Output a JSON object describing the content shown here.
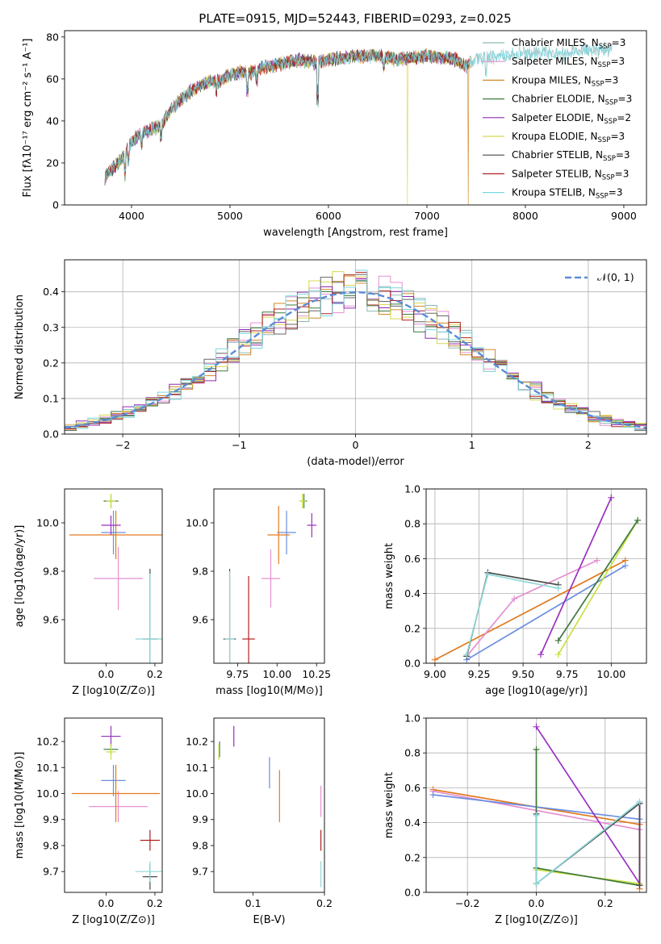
{
  "title": "PLATE=0915, MJD=52443, FIBERID=0293, z=0.025",
  "colors": [
    "#8fb8b8",
    "#e68fd0",
    "#d18a28",
    "#3e7a3e",
    "#8e2bb0",
    "#d8d850",
    "#4a4a4a",
    "#b02020",
    "#7ad6e0"
  ],
  "chart_data": [
    {
      "id": "spectrum",
      "type": "line",
      "xlabel": "wavelength [Angstrom, rest frame]",
      "ylabel": "Flux [fλ10⁻¹⁷ erg cm⁻² s⁻¹ A⁻¹]",
      "xlim": [
        3320,
        9230
      ],
      "ylim": [
        0,
        83
      ],
      "xticks": [
        4000,
        5000,
        6000,
        7000,
        8000,
        9000
      ],
      "yticks": [
        0,
        20,
        40,
        60,
        80
      ],
      "grid": false,
      "legend_position": "top-right",
      "legend": [
        "Chabrier MILES, N_SSP=3",
        "Salpeter MILES, N_SSP=3",
        "Kroupa MILES, N_SSP=3",
        "Chabrier ELODIE, N_SSP=3",
        "Salpeter ELODIE, N_SSP=2",
        "Kroupa ELODIE, N_SSP=3",
        "Chabrier STELIB, N_SSP=3",
        "Salpeter STELIB, N_SSP=3",
        "Kroupa STELIB, N_SSP=3"
      ],
      "continuum": {
        "x": [
          3730,
          3800,
          3900,
          4000,
          4100,
          4200,
          4300,
          4400,
          4500,
          4600,
          4700,
          4800,
          4900,
          5000,
          5100,
          5200,
          5300,
          5400,
          5500,
          5600,
          5700,
          5800,
          5900,
          6000,
          6100,
          6200,
          6300,
          6400,
          6500,
          6600,
          6700,
          6800,
          6900,
          7000,
          7100,
          7200,
          7300,
          7400,
          7500,
          7600,
          7700,
          7800,
          7900,
          8000,
          8100,
          8200,
          8300,
          8400,
          8500,
          8600,
          8700,
          8800,
          8900,
          9000,
          9100,
          9200
        ],
        "y": [
          13,
          17,
          22,
          30,
          34,
          36,
          38,
          45,
          50,
          54,
          57,
          59,
          59,
          62,
          63,
          63,
          65,
          66,
          67,
          68,
          69,
          68,
          68,
          69,
          70,
          70,
          71,
          71,
          71,
          70,
          69,
          70,
          70,
          71,
          70,
          70,
          69,
          66,
          70,
          69,
          71,
          71,
          72,
          72,
          72,
          73,
          72,
          72,
          73,
          74,
          73,
          74,
          74,
          75,
          76,
          76
        ]
      },
      "dropouts": [
        {
          "series": 5,
          "x": 6800,
          "y": 0
        },
        {
          "series": 2,
          "x": 7420,
          "y": 0
        }
      ]
    },
    {
      "id": "residuals",
      "type": "histogram",
      "xlabel": "(data-model)/error",
      "ylabel": "Normed distribution",
      "xlim": [
        -2.5,
        2.5
      ],
      "ylim": [
        0,
        0.49
      ],
      "xticks": [
        -2,
        -1,
        0,
        1,
        2
      ],
      "yticks": [
        0.0,
        0.1,
        0.2,
        0.3,
        0.4
      ],
      "grid": true,
      "reference_label": "𝒩(0, 1)",
      "reference_color": "#5b8bd8",
      "bin_width": 0.1
    },
    {
      "id": "age-vs-z",
      "type": "errorbar",
      "xlabel": "Z [log10(Z/Z⊙)]",
      "ylabel": "age  [log10(age/yr)]",
      "xlim": [
        -0.17,
        0.23
      ],
      "ylim": [
        9.42,
        10.14
      ],
      "xticks": [
        0.0,
        0.2
      ],
      "yticks": [
        9.6,
        9.8,
        10.0
      ],
      "grid": false,
      "points": [
        {
          "x": 0.03,
          "y": 9.96,
          "xerr": 0.05,
          "yerr": 0.09,
          "color": "#6b8ee0"
        },
        {
          "x": 0.05,
          "y": 9.77,
          "xerr": 0.1,
          "yerr": 0.13,
          "color": "#e68fd0"
        },
        {
          "x": 0.04,
          "y": 9.95,
          "xerr": 0.19,
          "yerr": 0.1,
          "color": "#e07a20"
        },
        {
          "x": 0.02,
          "y": 10.09,
          "xerr": 0.03,
          "yerr": 0.03,
          "color": "#3e7a3e"
        },
        {
          "x": 0.02,
          "y": 9.99,
          "xerr": 0.04,
          "yerr": 0.04,
          "color": "#9a30c0"
        },
        {
          "x": 0.02,
          "y": 10.09,
          "xerr": 0.02,
          "yerr": 0.03,
          "color": "#c8e040"
        },
        {
          "x": 0.18,
          "y": 9.52,
          "xerr": 0.03,
          "yerr": 0.29,
          "color": "#4a4a4a"
        },
        {
          "x": 0.18,
          "y": 9.52,
          "xerr": 0.06,
          "yerr": 0.27,
          "color": "#8fd8d8"
        }
      ]
    },
    {
      "id": "age-vs-mass",
      "type": "errorbar",
      "xlabel": "mass [log10(M/M⊙)]",
      "ylabel": "",
      "xlim": [
        9.6,
        10.3
      ],
      "ylim": [
        9.42,
        10.14
      ],
      "xticks": [
        9.75,
        10.0,
        10.25
      ],
      "yticks": [
        9.6,
        9.8,
        10.0
      ],
      "grid": false,
      "points": [
        {
          "x": 10.06,
          "y": 9.96,
          "xerr": 0.06,
          "yerr": 0.09,
          "color": "#6b8ee0"
        },
        {
          "x": 9.96,
          "y": 9.77,
          "xerr": 0.06,
          "yerr": 0.12,
          "color": "#e68fd0"
        },
        {
          "x": 10.01,
          "y": 9.95,
          "xerr": 0.07,
          "yerr": 0.12,
          "color": "#e07a20"
        },
        {
          "x": 10.17,
          "y": 10.09,
          "xerr": 0.02,
          "yerr": 0.03,
          "color": "#3e7a3e"
        },
        {
          "x": 10.22,
          "y": 9.99,
          "xerr": 0.03,
          "yerr": 0.05,
          "color": "#9a30c0"
        },
        {
          "x": 10.16,
          "y": 10.09,
          "xerr": 0.02,
          "yerr": 0.03,
          "color": "#c8e040"
        },
        {
          "x": 9.7,
          "y": 9.52,
          "xerr": 0.04,
          "yerr": 0.29,
          "color": "#4a4a4a"
        },
        {
          "x": 9.82,
          "y": 9.52,
          "xerr": 0.04,
          "yerr": 0.26,
          "color": "#b02020"
        },
        {
          "x": 9.7,
          "y": 9.52,
          "xerr": 0.03,
          "yerr": 0.28,
          "color": "#8fd8d8"
        }
      ]
    },
    {
      "id": "weight-vs-age",
      "type": "line",
      "xlabel": "age  [log10(age/yr)]",
      "ylabel": "mass weight",
      "xlim": [
        8.95,
        10.2
      ],
      "ylim": [
        0,
        1
      ],
      "xticks": [
        9.0,
        9.25,
        9.5,
        9.75,
        10.0
      ],
      "yticks": [
        0.0,
        0.2,
        0.4,
        0.6,
        0.8,
        1.0
      ],
      "grid": true,
      "series": [
        {
          "color": "#e07a20",
          "x": [
            9.0,
            10.08
          ],
          "y": [
            0.02,
            0.59
          ]
        },
        {
          "color": "#e68fd0",
          "x": [
            9.18,
            9.45,
            9.92
          ],
          "y": [
            0.04,
            0.37,
            0.59
          ]
        },
        {
          "color": "#6b8ee0",
          "x": [
            9.18,
            10.08
          ],
          "y": [
            0.02,
            0.56
          ]
        },
        {
          "color": "#9a30c0",
          "x": [
            9.6,
            10.0
          ],
          "y": [
            0.05,
            0.95
          ]
        },
        {
          "color": "#c8e040",
          "x": [
            9.7,
            10.15
          ],
          "y": [
            0.05,
            0.82
          ]
        },
        {
          "color": "#3e7a3e",
          "x": [
            9.7,
            10.15
          ],
          "y": [
            0.13,
            0.82
          ]
        },
        {
          "color": "#4a4a4a",
          "x": [
            9.18,
            9.3,
            9.7
          ],
          "y": [
            0.04,
            0.52,
            0.45
          ]
        },
        {
          "color": "#8fd8d8",
          "x": [
            9.18,
            9.3,
            9.7
          ],
          "y": [
            0.05,
            0.51,
            0.43
          ]
        }
      ]
    },
    {
      "id": "mass-vs-z",
      "type": "errorbar",
      "xlabel": "Z [log10(Z/Z⊙)]",
      "ylabel": "mass [log10(M/M⊙)]",
      "xlim": [
        -0.17,
        0.23
      ],
      "ylim": [
        9.62,
        10.29
      ],
      "xticks": [
        0.0,
        0.2
      ],
      "yticks": [
        9.7,
        9.8,
        9.9,
        10.0,
        10.1,
        10.2
      ],
      "grid": false,
      "points": [
        {
          "x": 0.03,
          "y": 10.05,
          "xerr": 0.05,
          "yerr": 0.06,
          "color": "#6b8ee0"
        },
        {
          "x": 0.05,
          "y": 9.95,
          "xerr": 0.12,
          "yerr": 0.06,
          "color": "#e68fd0"
        },
        {
          "x": 0.04,
          "y": 10.0,
          "xerr": 0.18,
          "yerr": 0.11,
          "color": "#e07a20"
        },
        {
          "x": 0.02,
          "y": 10.17,
          "xerr": 0.03,
          "yerr": 0.02,
          "color": "#3e7a3e"
        },
        {
          "x": 0.02,
          "y": 10.22,
          "xerr": 0.04,
          "yerr": 0.04,
          "color": "#9a30c0"
        },
        {
          "x": 0.02,
          "y": 10.16,
          "xerr": 0.02,
          "yerr": 0.03,
          "color": "#c8e040"
        },
        {
          "x": 0.18,
          "y": 9.68,
          "xerr": 0.03,
          "yerr": 0.05,
          "color": "#4a4a4a"
        },
        {
          "x": 0.18,
          "y": 9.82,
          "xerr": 0.04,
          "yerr": 0.04,
          "color": "#b02020"
        },
        {
          "x": 0.18,
          "y": 9.7,
          "xerr": 0.06,
          "yerr": 0.04,
          "color": "#8fd8d8"
        }
      ]
    },
    {
      "id": "mass-vs-ebv",
      "type": "errorbar",
      "xlabel": "E(B-V)",
      "ylabel": "",
      "xlim": [
        0.045,
        0.2
      ],
      "ylim": [
        9.62,
        10.29
      ],
      "xticks": [
        0.1,
        0.2
      ],
      "yticks": [
        9.7,
        9.8,
        9.9,
        10.0,
        10.1,
        10.2
      ],
      "grid": false,
      "points": [
        {
          "x": 0.123,
          "y": 10.08,
          "xerr": 0,
          "yerr": 0.06,
          "color": "#6b8ee0"
        },
        {
          "x": 0.195,
          "y": 9.97,
          "xerr": 0,
          "yerr": 0.06,
          "color": "#e68fd0"
        },
        {
          "x": 0.137,
          "y": 9.99,
          "xerr": 0,
          "yerr": 0.1,
          "color": "#e07a20"
        },
        {
          "x": 0.053,
          "y": 10.17,
          "xerr": 0,
          "yerr": 0.03,
          "color": "#3e7a3e"
        },
        {
          "x": 0.073,
          "y": 10.22,
          "xerr": 0,
          "yerr": 0.04,
          "color": "#9a30c0"
        },
        {
          "x": 0.052,
          "y": 10.16,
          "xerr": 0,
          "yerr": 0.03,
          "color": "#c8e040"
        },
        {
          "x": 0.195,
          "y": 9.82,
          "xerr": 0,
          "yerr": 0.04,
          "color": "#b02020"
        },
        {
          "x": 0.195,
          "y": 9.69,
          "xerr": 0,
          "yerr": 0.05,
          "color": "#8fd8d8"
        }
      ]
    },
    {
      "id": "weight-vs-z",
      "type": "line",
      "xlabel": "Z [log10(Z/Z⊙)]",
      "ylabel": "mass weight",
      "xlim": [
        -0.32,
        0.32
      ],
      "ylim": [
        0,
        1
      ],
      "xticks": [
        -0.2,
        0.0,
        0.2
      ],
      "yticks": [
        0.0,
        0.2,
        0.4,
        0.6,
        0.8,
        1.0
      ],
      "grid": true,
      "series": [
        {
          "color": "#e07a20",
          "x": [
            -0.3,
            0.3,
            0.3
          ],
          "y": [
            0.59,
            0.39,
            0.02
          ]
        },
        {
          "color": "#e68fd0",
          "x": [
            -0.3,
            0.3
          ],
          "y": [
            0.58,
            0.36
          ]
        },
        {
          "color": "#6b8ee0",
          "x": [
            -0.3,
            0.3
          ],
          "y": [
            0.56,
            0.42
          ]
        },
        {
          "color": "#9a30c0",
          "x": [
            0.0,
            0.3,
            0.3
          ],
          "y": [
            0.95,
            0.05,
            0.51
          ]
        },
        {
          "color": "#c8e040",
          "x": [
            0.0,
            0.0,
            0.3
          ],
          "y": [
            0.82,
            0.13,
            0.05
          ]
        },
        {
          "color": "#3e7a3e",
          "x": [
            0.0,
            0.0,
            0.3
          ],
          "y": [
            0.82,
            0.14,
            0.04
          ]
        },
        {
          "color": "#4a4a4a",
          "x": [
            0.0,
            0.0,
            0.3,
            0.3
          ],
          "y": [
            0.45,
            0.05,
            0.51,
            0.04
          ]
        },
        {
          "color": "#8fd8d8",
          "x": [
            0.0,
            0.0,
            0.3
          ],
          "y": [
            0.44,
            0.05,
            0.52
          ]
        }
      ]
    }
  ]
}
